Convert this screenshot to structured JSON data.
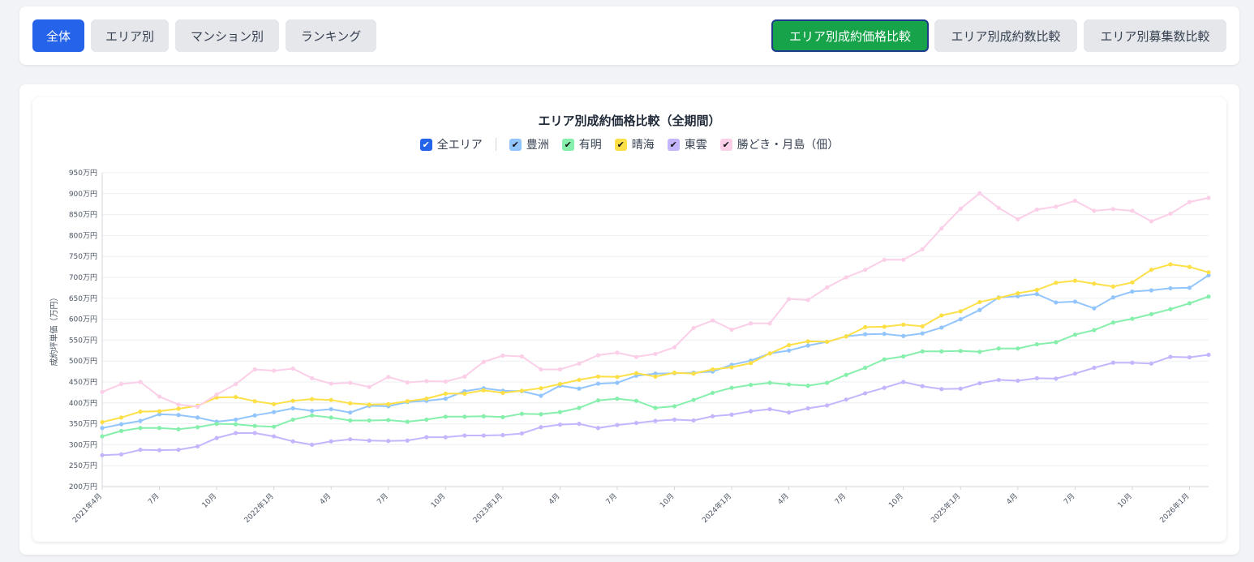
{
  "nav": {
    "left": [
      "全体",
      "エリア別",
      "マンション別",
      "ランキング"
    ],
    "right": [
      "エリア別成約価格比較",
      "エリア別成約数比較",
      "エリア別募集数比較"
    ]
  },
  "legend": {
    "all": "全エリア",
    "check": "✔"
  },
  "chart_data": {
    "type": "line",
    "title": "エリア別成約価格比較（全期間）",
    "ylabel": "成約坪単価（万円）",
    "xlabel": "",
    "ylim": [
      200,
      950
    ],
    "y_ticks": [
      200,
      250,
      300,
      350,
      400,
      450,
      500,
      550,
      600,
      650,
      700,
      750,
      800,
      850,
      900,
      950
    ],
    "y_tick_suffix": "万円",
    "grid": true,
    "legend_position": "top-center",
    "x_tick_labels": [
      {
        "index": 0,
        "label": "2021年4月"
      },
      {
        "index": 3,
        "label": "7月"
      },
      {
        "index": 6,
        "label": "10月"
      },
      {
        "index": 9,
        "label": "2022年1月"
      },
      {
        "index": 12,
        "label": "4月"
      },
      {
        "index": 15,
        "label": "7月"
      },
      {
        "index": 18,
        "label": "10月"
      },
      {
        "index": 21,
        "label": "2023年1月"
      },
      {
        "index": 24,
        "label": "4月"
      },
      {
        "index": 27,
        "label": "7月"
      },
      {
        "index": 30,
        "label": "10月"
      },
      {
        "index": 33,
        "label": "2024年1月"
      },
      {
        "index": 36,
        "label": "4月"
      },
      {
        "index": 39,
        "label": "7月"
      },
      {
        "index": 42,
        "label": "10月"
      },
      {
        "index": 45,
        "label": "2025年1月"
      },
      {
        "index": 48,
        "label": "4月"
      },
      {
        "index": 51,
        "label": "7月"
      },
      {
        "index": 54,
        "label": "10月"
      },
      {
        "index": 57,
        "label": "2026年1月"
      }
    ],
    "n_points": 59,
    "series": [
      {
        "name": "豊洲",
        "color": "#93c5fd",
        "check_color": "#93c5fd",
        "values": [
          340,
          349,
          357,
          373,
          371,
          365,
          355,
          360,
          370,
          378,
          387,
          381,
          385,
          377,
          393,
          392,
          402,
          405,
          410,
          428,
          435,
          429,
          428,
          417,
          441,
          434,
          446,
          448,
          465,
          470,
          471,
          472,
          475,
          491,
          501,
          518,
          525,
          537,
          546,
          559,
          564,
          565,
          560,
          566,
          580,
          600,
          622,
          652,
          655,
          660,
          640,
          642,
          626,
          652,
          666,
          669,
          674,
          675,
          705
        ]
      },
      {
        "name": "有明",
        "color": "#86efac",
        "check_color": "#86efac",
        "values": [
          320,
          333,
          340,
          340,
          337,
          342,
          350,
          349,
          345,
          343,
          360,
          370,
          365,
          358,
          358,
          359,
          355,
          360,
          367,
          367,
          368,
          366,
          374,
          373,
          378,
          388,
          406,
          410,
          405,
          388,
          392,
          407,
          424,
          436,
          443,
          448,
          444,
          441,
          448,
          467,
          484,
          504,
          511,
          523,
          523,
          524,
          522,
          530,
          530,
          540,
          545,
          563,
          574,
          592,
          601,
          612,
          624,
          638,
          654
        ]
      },
      {
        "name": "晴海",
        "color": "#fde047",
        "check_color": "#fde047",
        "values": [
          354,
          365,
          379,
          380,
          386,
          393,
          413,
          414,
          404,
          397,
          405,
          409,
          407,
          399,
          396,
          397,
          404,
          410,
          422,
          422,
          430,
          424,
          429,
          435,
          445,
          455,
          463,
          462,
          471,
          463,
          472,
          470,
          480,
          485,
          495,
          518,
          538,
          547,
          546,
          559,
          581,
          582,
          587,
          583,
          609,
          619,
          641,
          651,
          662,
          670,
          687,
          692,
          685,
          678,
          688,
          718,
          731,
          725,
          712
        ]
      },
      {
        "name": "東雲",
        "color": "#c4b5fd",
        "check_color": "#c4b5fd",
        "values": [
          275,
          277,
          288,
          287,
          288,
          296,
          316,
          328,
          328,
          320,
          308,
          300,
          308,
          313,
          310,
          309,
          310,
          318,
          318,
          322,
          322,
          323,
          327,
          342,
          348,
          350,
          340,
          347,
          352,
          357,
          360,
          358,
          368,
          372,
          380,
          385,
          377,
          387,
          394,
          408,
          423,
          436,
          450,
          440,
          433,
          434,
          447,
          455,
          453,
          459,
          458,
          470,
          484,
          496,
          496,
          494,
          510,
          509,
          515
        ]
      },
      {
        "name": "勝どき・月島（佃）",
        "color": "#fbcfe8",
        "check_color": "#fbcfe8",
        "values": [
          426,
          445,
          450,
          415,
          396,
          391,
          420,
          445,
          480,
          477,
          482,
          459,
          446,
          448,
          438,
          462,
          449,
          452,
          451,
          463,
          498,
          513,
          511,
          480,
          480,
          494,
          514,
          520,
          510,
          517,
          533,
          579,
          597,
          575,
          590,
          590,
          648,
          646,
          676,
          700,
          718,
          742,
          742,
          767,
          817,
          864,
          901,
          866,
          839,
          862,
          869,
          883,
          859,
          863,
          859,
          834,
          852,
          880,
          890
        ]
      }
    ]
  }
}
